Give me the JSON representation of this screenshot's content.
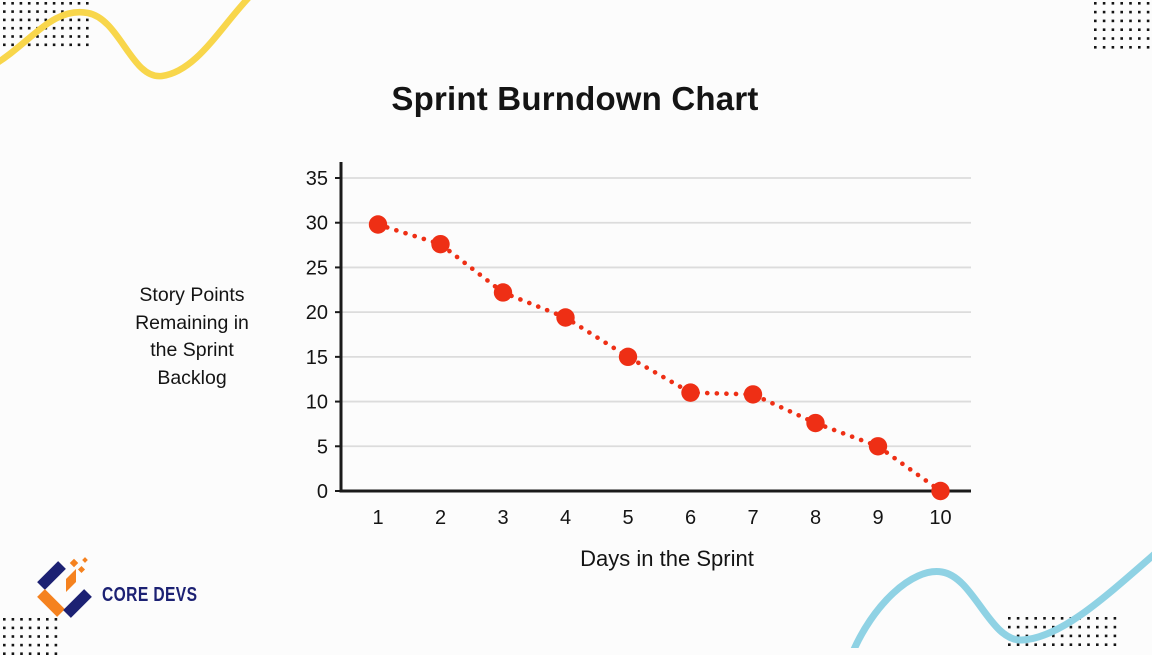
{
  "title": "Sprint Burndown Chart",
  "chart_data": {
    "type": "line",
    "line_style": "dotted",
    "marker": "circle",
    "title": "Sprint Burndown Chart",
    "xlabel": "Days in the Sprint",
    "ylabel": "Story Points Remaining in the Sprint Backlog",
    "x": [
      1,
      2,
      3,
      4,
      5,
      6,
      7,
      8,
      9,
      10
    ],
    "values": [
      29.8,
      27.6,
      22.2,
      19.4,
      15,
      11,
      10.8,
      7.6,
      5,
      0
    ],
    "ylim": [
      0,
      35
    ],
    "yticks": [
      0,
      5,
      10,
      15,
      20,
      25,
      30,
      35
    ],
    "grid": true,
    "legend": false,
    "line_color": "#ee2f15"
  },
  "logo": {
    "text": "CORE DEVS"
  },
  "colors": {
    "accent_red": "#ee2f15",
    "navy": "#1c2173",
    "orange": "#f5821f",
    "yellow_wave": "#f8d64b",
    "blue_wave": "#8fd2e4",
    "gridline": "#dcdcdc",
    "axis": "#1a1a1a",
    "text": "#141414",
    "pattern_dots": "#141414",
    "background": "#fcfcfc"
  }
}
